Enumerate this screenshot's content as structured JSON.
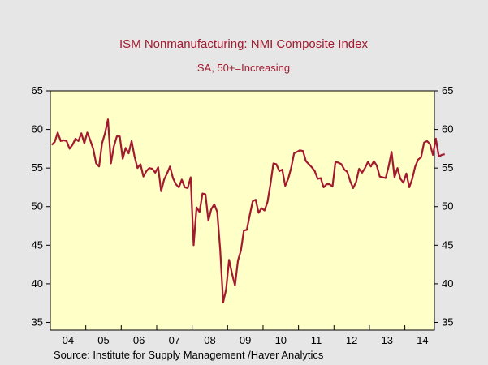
{
  "chart_data": {
    "type": "line",
    "title": "ISM Nonmanufacturing: NMI Composite Index",
    "subtitle": "SA, 50+=Increasing",
    "source": "Source:  Institute for Supply Management /Haver Analytics",
    "xlabel": "",
    "ylabel": "",
    "x_start": "2004-01",
    "x_end": "2014-10",
    "x_ticks": [
      "04",
      "05",
      "06",
      "07",
      "08",
      "09",
      "10",
      "11",
      "12",
      "13",
      "14"
    ],
    "ylim": [
      34,
      65
    ],
    "y_ticks": [
      35,
      40,
      45,
      50,
      55,
      60,
      65
    ],
    "grid": false,
    "line_color": "#a31a2f",
    "plot_background": "#ffffc8",
    "page_background": "#e6e6e6",
    "series": [
      {
        "values": [
          58.0,
          58.4,
          59.6,
          58.5,
          58.6,
          58.5,
          57.5,
          58.0,
          58.8,
          58.5,
          59.5,
          58.2,
          59.6,
          58.6,
          57.5,
          55.6,
          55.2,
          58.2,
          59.5,
          61.3,
          55.6,
          57.8,
          59.1,
          59.1,
          56.2,
          57.6,
          56.9,
          58.5,
          56.5,
          55.0,
          55.5,
          53.9,
          54.6,
          55.0,
          54.9,
          54.4,
          55.1,
          52.0,
          53.5,
          54.3,
          55.2,
          53.7,
          52.9,
          52.5,
          53.5,
          52.5,
          52.4,
          53.8,
          45.0,
          49.9,
          49.3,
          51.7,
          51.6,
          48.2,
          49.7,
          50.3,
          49.3,
          44.4,
          37.6,
          39.3,
          43.1,
          41.3,
          39.8,
          43.0,
          44.3,
          46.9,
          47.0,
          48.9,
          50.7,
          50.9,
          49.2,
          49.8,
          49.5,
          50.6,
          52.9,
          55.6,
          55.5,
          54.6,
          54.8,
          52.7,
          53.6,
          55.0,
          56.9,
          57.1,
          57.3,
          57.2,
          55.9,
          55.5,
          55.1,
          54.6,
          53.6,
          53.7,
          52.5,
          52.9,
          52.9,
          52.6,
          55.8,
          55.7,
          55.5,
          54.8,
          54.5,
          53.3,
          52.4,
          53.2,
          54.9,
          54.4,
          55.0,
          55.8,
          55.2,
          55.9,
          55.3,
          53.9,
          53.8,
          53.7,
          55.2,
          57.1,
          53.8,
          55.0,
          53.6,
          53.1,
          54.3,
          52.5,
          53.6,
          55.2,
          56.1,
          56.4,
          58.3,
          58.5,
          58.1,
          56.7,
          58.8,
          56.5,
          56.7,
          56.8
        ]
      }
    ]
  }
}
